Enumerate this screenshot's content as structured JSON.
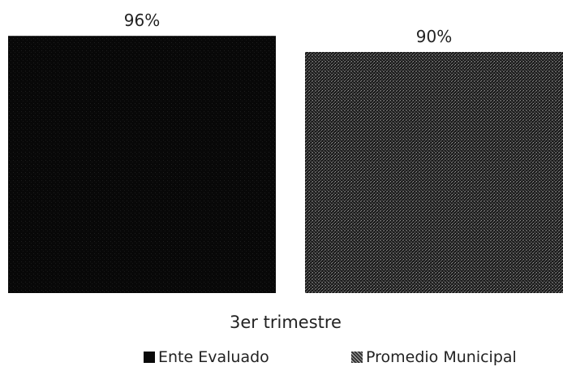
{
  "chart_data": {
    "type": "bar",
    "categories": [
      "3er trimestre"
    ],
    "series": [
      {
        "name": "Ente Evaluado",
        "values": [
          96
        ],
        "color": "#0a0a0a",
        "label": "96%"
      },
      {
        "name": "Promedio Municipal",
        "values": [
          90
        ],
        "color": "#2b2b2b",
        "label": "90%"
      }
    ],
    "title": "",
    "xlabel": "3er trimestre",
    "ylabel": "",
    "ylim": [
      0,
      100
    ],
    "grid": false,
    "legend": "bottom"
  }
}
